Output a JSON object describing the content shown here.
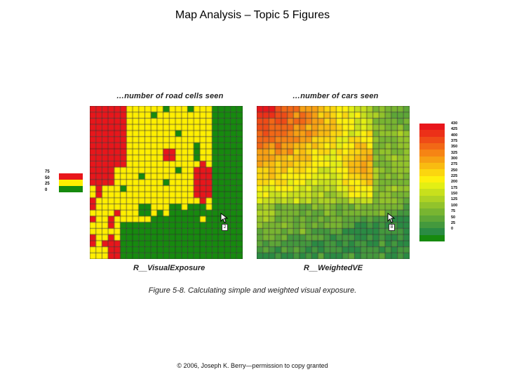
{
  "page": {
    "title": "Map Analysis – Topic 5 Figures",
    "caption": "Figure 5-8.  Calculating simple and weighted visual exposure.",
    "footer": "© 2006, Joseph K. Berry—permission to copy granted"
  },
  "left_map": {
    "title": "…number of road cells seen",
    "name": "R__VisualExposure",
    "legend": [
      {
        "label": "75",
        "color": "#e8161b"
      },
      {
        "label": "50",
        "color": "#ffef00"
      },
      {
        "label": "25",
        "color": "#168a0e"
      },
      {
        "label": "0",
        "color": ""
      }
    ],
    "badge": "2"
  },
  "right_map": {
    "title": "…number of cars seen",
    "name": "R__WeightedVE",
    "legend_labels": [
      "430",
      "425",
      "400",
      "375",
      "350",
      "325",
      "300",
      "275",
      "250",
      "225",
      "200",
      "175",
      "150",
      "125",
      "100",
      "75",
      "50",
      "25",
      "0"
    ],
    "legend_colors": [
      "#e8161b",
      "#ec3018",
      "#ef4c17",
      "#f26816",
      "#f68414",
      "#f7a013",
      "#f9bb11",
      "#fbd60f",
      "#fdf00d",
      "#e3ef14",
      "#c8e01c",
      "#aed224",
      "#92c32b",
      "#78b531",
      "#5ea737",
      "#44993d",
      "#2a8b43",
      "#168a0e"
    ],
    "badge": "8"
  },
  "colors": {
    "red": "#e8161b",
    "yellow": "#ffef00",
    "green": "#168a0e",
    "gridline": "#222222"
  }
}
